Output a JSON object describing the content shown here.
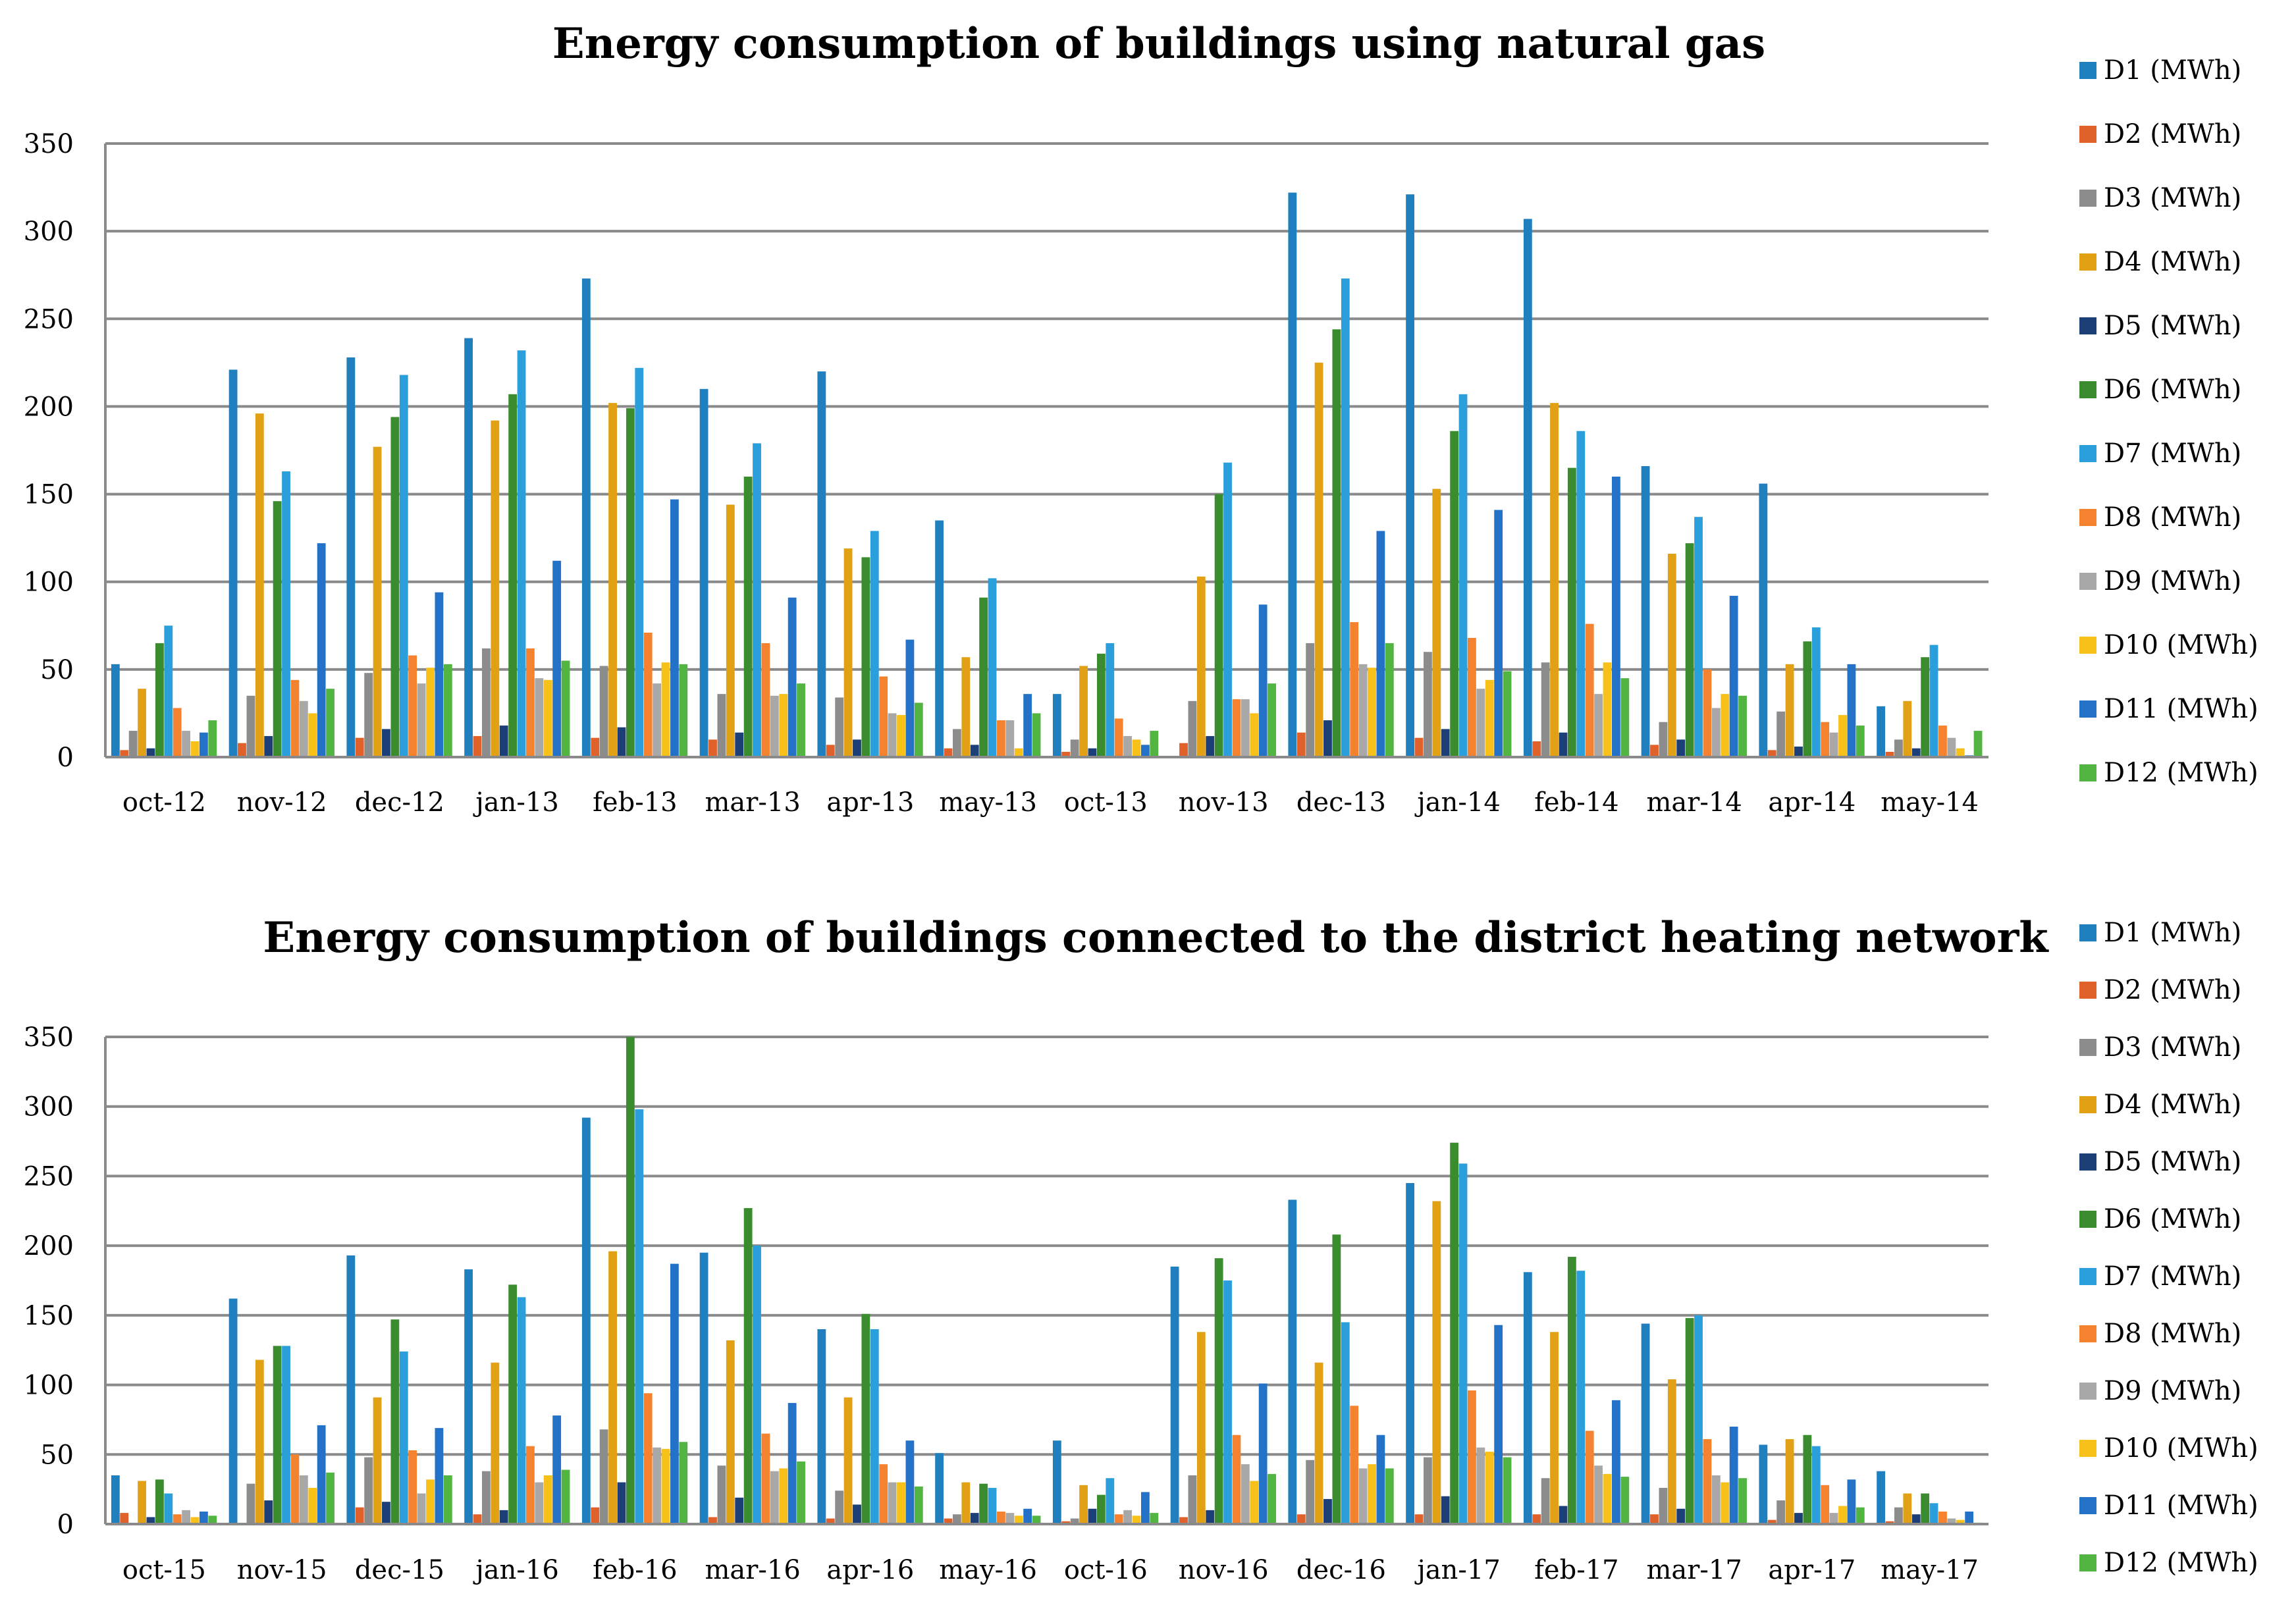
{
  "chart_data": [
    {
      "type": "bar",
      "title": "Energy consumption of buildings using natural gas",
      "xlabel": "",
      "ylabel": "",
      "ylim": [
        0,
        350
      ],
      "yticks": [
        0,
        50,
        100,
        150,
        200,
        250,
        300,
        350
      ],
      "grid": true,
      "legend_position": "right",
      "categories": [
        "oct-12",
        "nov-12",
        "dec-12",
        "jan-13",
        "feb-13",
        "mar-13",
        "apr-13",
        "may-13",
        "oct-13",
        "nov-13",
        "dec-13",
        "jan-14",
        "feb-14",
        "mar-14",
        "apr-14",
        "may-14"
      ],
      "series": [
        {
          "name": "D1 (MWh)",
          "color": "#1f7fbf",
          "values": [
            53,
            221,
            228,
            239,
            273,
            210,
            220,
            135,
            36,
            0,
            322,
            321,
            307,
            166,
            156,
            29
          ]
        },
        {
          "name": "D2 (MWh)",
          "color": "#e0622a",
          "values": [
            4,
            8,
            11,
            12,
            11,
            10,
            7,
            5,
            3,
            8,
            14,
            11,
            9,
            7,
            4,
            3
          ]
        },
        {
          "name": "D3 (MWh)",
          "color": "#8c8c8c",
          "values": [
            15,
            35,
            48,
            62,
            52,
            36,
            34,
            16,
            10,
            32,
            65,
            60,
            54,
            20,
            26,
            10
          ]
        },
        {
          "name": "D4 (MWh)",
          "color": "#e2a014",
          "values": [
            39,
            196,
            177,
            192,
            202,
            144,
            119,
            57,
            52,
            103,
            225,
            153,
            202,
            116,
            53,
            32
          ]
        },
        {
          "name": "D5 (MWh)",
          "color": "#1c3f78",
          "values": [
            5,
            12,
            16,
            18,
            17,
            14,
            10,
            7,
            5,
            12,
            21,
            16,
            14,
            10,
            6,
            5
          ]
        },
        {
          "name": "D6 (MWh)",
          "color": "#3a8c2e",
          "values": [
            65,
            146,
            194,
            207,
            199,
            160,
            114,
            91,
            59,
            150,
            244,
            186,
            165,
            122,
            66,
            57
          ]
        },
        {
          "name": "D7 (MWh)",
          "color": "#2a9fdb",
          "values": [
            75,
            163,
            218,
            232,
            222,
            179,
            129,
            102,
            65,
            168,
            273,
            207,
            186,
            137,
            74,
            64
          ]
        },
        {
          "name": "D8 (MWh)",
          "color": "#f5822e",
          "values": [
            28,
            44,
            58,
            62,
            71,
            65,
            46,
            21,
            22,
            33,
            77,
            68,
            76,
            50,
            20,
            18
          ]
        },
        {
          "name": "D9 (MWh)",
          "color": "#a8a8a8",
          "values": [
            15,
            32,
            42,
            45,
            42,
            35,
            25,
            21,
            12,
            33,
            53,
            39,
            36,
            28,
            14,
            11
          ]
        },
        {
          "name": "D10 (MWh)",
          "color": "#f7c11a",
          "values": [
            9,
            25,
            51,
            44,
            54,
            36,
            24,
            5,
            10,
            25,
            51,
            44,
            54,
            36,
            24,
            5
          ]
        },
        {
          "name": "D11 (MWh)",
          "color": "#2472c8",
          "values": [
            14,
            122,
            94,
            112,
            147,
            91,
            67,
            36,
            7,
            87,
            129,
            141,
            160,
            92,
            53,
            1
          ]
        },
        {
          "name": "D12 (MWh)",
          "color": "#52b542",
          "values": [
            21,
            39,
            53,
            55,
            53,
            42,
            31,
            25,
            15,
            42,
            65,
            49,
            45,
            35,
            18,
            15
          ]
        }
      ]
    },
    {
      "type": "bar",
      "title": "Energy consumption of buildings connected to the district heating network",
      "xlabel": "",
      "ylabel": "",
      "ylim": [
        0,
        350
      ],
      "yticks": [
        0,
        50,
        100,
        150,
        200,
        250,
        300,
        350
      ],
      "grid": true,
      "legend_position": "right",
      "categories": [
        "oct-15",
        "nov-15",
        "dec-15",
        "jan-16",
        "feb-16",
        "mar-16",
        "apr-16",
        "may-16",
        "oct-16",
        "nov-16",
        "dec-16",
        "jan-17",
        "feb-17",
        "mar-17",
        "apr-17",
        "may-17"
      ],
      "series": [
        {
          "name": "D1 (MWh)",
          "color": "#1f7fbf",
          "values": [
            35,
            162,
            193,
            183,
            292,
            195,
            140,
            51,
            60,
            185,
            233,
            245,
            181,
            144,
            57,
            38
          ]
        },
        {
          "name": "D2 (MWh)",
          "color": "#e0622a",
          "values": [
            8,
            0,
            12,
            7,
            12,
            5,
            4,
            4,
            2,
            5,
            7,
            7,
            7,
            7,
            3,
            2
          ]
        },
        {
          "name": "D3 (MWh)",
          "color": "#8c8c8c",
          "values": [
            0,
            29,
            48,
            38,
            68,
            42,
            24,
            7,
            4,
            35,
            46,
            48,
            33,
            26,
            17,
            12
          ]
        },
        {
          "name": "D4 (MWh)",
          "color": "#e2a014",
          "values": [
            31,
            118,
            91,
            116,
            196,
            132,
            91,
            30,
            28,
            138,
            116,
            232,
            138,
            104,
            61,
            22
          ]
        },
        {
          "name": "D5 (MWh)",
          "color": "#1c3f78",
          "values": [
            5,
            17,
            16,
            10,
            30,
            19,
            14,
            8,
            11,
            10,
            18,
            20,
            13,
            11,
            8,
            7
          ]
        },
        {
          "name": "D6 (MWh)",
          "color": "#3a8c2e",
          "values": [
            32,
            128,
            147,
            172,
            350,
            227,
            151,
            29,
            21,
            191,
            208,
            274,
            192,
            148,
            64,
            22
          ]
        },
        {
          "name": "D7 (MWh)",
          "color": "#2a9fdb",
          "values": [
            22,
            128,
            124,
            163,
            298,
            200,
            140,
            26,
            33,
            175,
            145,
            259,
            182,
            150,
            56,
            15
          ]
        },
        {
          "name": "D8 (MWh)",
          "color": "#f5822e",
          "values": [
            7,
            50,
            53,
            56,
            94,
            65,
            43,
            9,
            7,
            64,
            85,
            96,
            67,
            61,
            28,
            9
          ]
        },
        {
          "name": "D9 (MWh)",
          "color": "#a8a8a8",
          "values": [
            10,
            35,
            22,
            30,
            55,
            38,
            30,
            8,
            10,
            43,
            40,
            55,
            42,
            35,
            8,
            4
          ]
        },
        {
          "name": "D10 (MWh)",
          "color": "#f7c11a",
          "values": [
            5,
            26,
            32,
            35,
            54,
            40,
            30,
            6,
            6,
            31,
            43,
            52,
            36,
            30,
            13,
            3
          ]
        },
        {
          "name": "D11 (MWh)",
          "color": "#2472c8",
          "values": [
            9,
            71,
            69,
            78,
            187,
            87,
            60,
            11,
            23,
            101,
            64,
            143,
            89,
            70,
            32,
            9
          ]
        },
        {
          "name": "D12 (MWh)",
          "color": "#52b542",
          "values": [
            6,
            37,
            35,
            39,
            59,
            45,
            27,
            6,
            8,
            36,
            40,
            48,
            34,
            33,
            12,
            1
          ]
        }
      ]
    }
  ]
}
